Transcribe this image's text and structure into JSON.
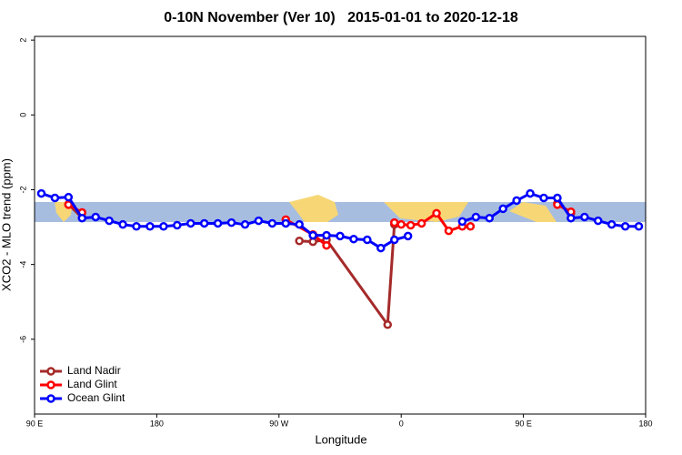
{
  "chart_data": {
    "type": "line",
    "title": "0-10N November (Ver 10)   2015-01-01 to 2020-12-18",
    "x_label": "Longitude",
    "y_label": "XCO2 - MLO trend (ppm)",
    "xlim": [
      90,
      540
    ],
    "ylim": [
      -8,
      2.1
    ],
    "xticks": [
      {
        "value": 90,
        "label": "90 E"
      },
      180,
      {
        "value": 270,
        "label": "90 W"
      },
      {
        "value": 360,
        "label": "0"
      },
      {
        "value": 450,
        "label": "90 E"
      },
      {
        "value": 540,
        "label": "180"
      }
    ],
    "yticks": [
      2,
      0,
      -2,
      -4,
      -6
    ],
    "legend": "bottom-left",
    "series": [
      {
        "name": "Land Nadir",
        "color": "#a52a2a",
        "x": [
          115,
          125,
          200,
          285,
          295,
          305,
          350,
          355,
          420,
          475,
          485
        ],
        "values": [
          -2.39,
          -2.75,
          null,
          -3.37,
          -3.39,
          -3.34,
          -5.61,
          -2.93,
          null,
          -2.37,
          -2.63
        ]
      },
      {
        "name": "Land Glint",
        "color": "#ff0000",
        "x": [
          115,
          125,
          200,
          275,
          295,
          305,
          330,
          355,
          360,
          367,
          375,
          386,
          395,
          405,
          411,
          450,
          475,
          485
        ],
        "values": [
          -2.4,
          -2.61,
          null,
          -2.8,
          -3.2,
          -3.49,
          null,
          -2.88,
          -2.93,
          -2.95,
          -2.9,
          -2.63,
          -3.1,
          -2.98,
          -2.98,
          null,
          -2.4,
          -2.59
        ]
      },
      {
        "name": "Ocean Glint",
        "color": "#0000ff",
        "x": [
          95,
          105,
          115,
          125,
          135,
          145,
          155,
          165,
          175,
          185,
          195,
          205,
          215,
          225,
          235,
          245,
          255,
          265,
          275,
          285,
          295,
          305,
          315,
          325,
          335,
          345,
          355,
          365,
          385,
          405,
          415,
          425,
          435,
          445,
          455,
          465,
          475,
          485,
          495,
          505,
          515,
          525,
          535
        ],
        "values": [
          -2.1,
          -2.22,
          -2.2,
          -2.76,
          -2.73,
          -2.83,
          -2.93,
          -2.98,
          -2.98,
          -2.98,
          -2.95,
          -2.9,
          -2.9,
          -2.9,
          -2.88,
          -2.93,
          -2.83,
          -2.9,
          -2.9,
          -2.93,
          -3.22,
          -3.22,
          -3.24,
          -3.32,
          -3.34,
          -3.56,
          -3.34,
          -3.24,
          null,
          -2.85,
          -2.73,
          -2.76,
          -2.51,
          -2.29,
          -2.1,
          -2.22,
          -2.22,
          -2.76,
          -2.73,
          -2.83,
          -2.93,
          -2.98,
          -2.98
        ]
      }
    ]
  }
}
